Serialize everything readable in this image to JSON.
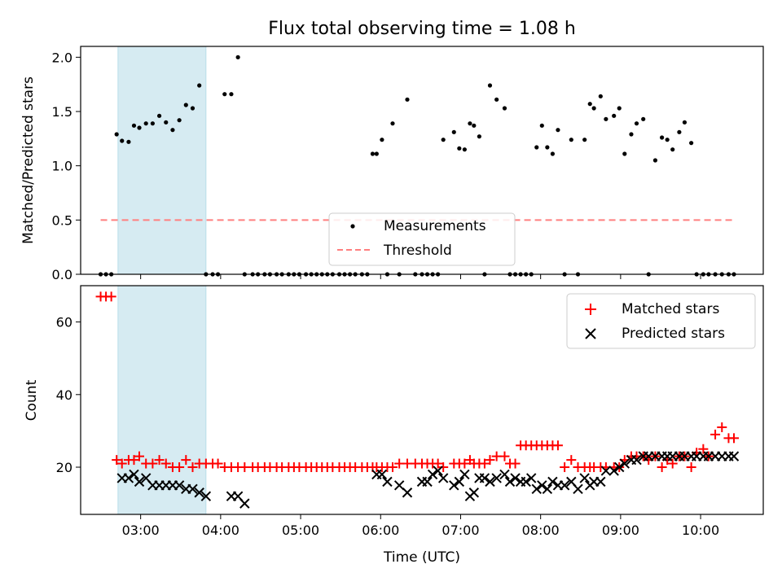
{
  "chart_data": [
    {
      "type": "scatter",
      "title": "Flux total observing time = 1.08 h",
      "xlabel": "",
      "ylabel": "Matched/Predicted stars",
      "xlim": [
        "02:15",
        "10:47"
      ],
      "ylim": [
        0,
        2.1
      ],
      "yticks": [
        "0.0",
        "0.5",
        "1.0",
        "1.5",
        "2.0"
      ],
      "grid": false,
      "legend_position": "bottom-center",
      "shaded_interval": {
        "start": "02:43",
        "end": "03:49",
        "color": "#add8e6"
      },
      "series": [
        {
          "name": "Measurements",
          "kind": "dot",
          "color": "#000000",
          "x": [
            "02:30",
            "02:34",
            "02:38",
            "02:42",
            "02:46",
            "02:51",
            "02:55",
            "02:59",
            "03:04",
            "03:09",
            "03:14",
            "03:19",
            "03:24",
            "03:29",
            "03:34",
            "03:39",
            "03:44",
            "03:49",
            "03:54",
            "03:58",
            "04:03",
            "04:08",
            "04:13",
            "04:18",
            "04:24",
            "04:28",
            "04:33",
            "04:37",
            "04:42",
            "04:46",
            "04:51",
            "04:55",
            "04:59",
            "05:04",
            "05:08",
            "05:12",
            "05:16",
            "05:20",
            "05:24",
            "05:29",
            "05:33",
            "05:37",
            "05:41",
            "05:46",
            "05:50",
            "05:54",
            "05:57",
            "06:01",
            "06:05",
            "06:09",
            "06:14",
            "06:20",
            "06:26",
            "06:31",
            "06:35",
            "06:39",
            "06:43",
            "06:47",
            "06:55",
            "06:59",
            "07:03",
            "07:07",
            "07:10",
            "07:14",
            "07:18",
            "07:22",
            "07:27",
            "07:33",
            "07:37",
            "07:41",
            "07:45",
            "07:49",
            "07:53",
            "07:57",
            "08:01",
            "08:05",
            "08:09",
            "08:13",
            "08:18",
            "08:23",
            "08:28",
            "08:33",
            "08:37",
            "08:40",
            "08:45",
            "08:49",
            "08:55",
            "08:59",
            "09:03",
            "09:08",
            "09:12",
            "09:17",
            "09:21",
            "09:26",
            "09:31",
            "09:35",
            "09:39",
            "09:44",
            "09:48",
            "09:53",
            "09:57",
            "10:02",
            "10:06",
            "10:11",
            "10:16",
            "10:21",
            "10:25"
          ],
          "y": [
            0,
            0,
            0,
            1.29,
            1.23,
            1.22,
            1.37,
            1.35,
            1.39,
            1.39,
            1.46,
            1.4,
            1.33,
            1.42,
            1.56,
            1.53,
            1.74,
            0,
            0,
            0,
            1.66,
            1.66,
            2.0,
            0,
            0,
            0,
            0,
            0,
            0,
            0,
            0,
            0,
            0,
            0,
            0,
            0,
            0,
            0,
            0,
            0,
            0,
            0,
            0,
            0,
            0,
            1.11,
            1.11,
            1.24,
            0,
            1.39,
            0,
            1.61,
            0,
            0,
            0,
            0,
            0,
            1.24,
            1.31,
            1.16,
            1.15,
            1.39,
            1.37,
            1.27,
            0,
            1.74,
            1.61,
            1.53,
            0,
            0,
            0,
            0,
            0,
            1.17,
            1.37,
            1.17,
            1.11,
            1.33,
            0,
            1.24,
            0,
            1.24,
            1.57,
            1.53,
            1.64,
            1.43,
            1.46,
            1.53,
            1.11,
            1.29,
            1.39,
            1.43,
            0,
            1.05,
            1.26,
            1.24,
            1.15,
            1.31,
            1.4,
            1.21,
            0,
            0,
            0,
            0,
            0,
            0,
            0
          ]
        },
        {
          "name": "Threshold",
          "kind": "dashed-line",
          "color": "#ff7f7f",
          "x": [
            "02:30",
            "10:25"
          ],
          "y": [
            0.5,
            0.5
          ]
        }
      ]
    },
    {
      "type": "scatter",
      "title": "",
      "xlabel": "Time (UTC)",
      "ylabel": "Count",
      "xlim": [
        "02:15",
        "10:47"
      ],
      "ylim": [
        7,
        70
      ],
      "yticks": [
        "20",
        "40",
        "60"
      ],
      "xticks": [
        "03:00",
        "04:00",
        "05:00",
        "06:00",
        "07:00",
        "08:00",
        "09:00",
        "10:00"
      ],
      "grid": false,
      "legend_position": "top-right",
      "shaded_interval": {
        "start": "02:43",
        "end": "03:49",
        "color": "#add8e6"
      },
      "series": [
        {
          "name": "Matched stars",
          "kind": "plus",
          "color": "#ff0000",
          "x": [
            "02:30",
            "02:34",
            "02:38",
            "02:42",
            "02:46",
            "02:51",
            "02:55",
            "02:59",
            "03:04",
            "03:09",
            "03:14",
            "03:19",
            "03:24",
            "03:29",
            "03:34",
            "03:39",
            "03:44",
            "03:49",
            "03:54",
            "03:58",
            "04:03",
            "04:08",
            "04:13",
            "04:18",
            "04:24",
            "04:28",
            "04:33",
            "04:37",
            "04:42",
            "04:46",
            "04:51",
            "04:55",
            "04:59",
            "05:04",
            "05:08",
            "05:12",
            "05:16",
            "05:20",
            "05:24",
            "05:29",
            "05:33",
            "05:37",
            "05:41",
            "05:46",
            "05:50",
            "05:54",
            "05:57",
            "06:01",
            "06:05",
            "06:09",
            "06:14",
            "06:20",
            "06:26",
            "06:31",
            "06:35",
            "06:39",
            "06:43",
            "06:47",
            "06:55",
            "06:59",
            "07:03",
            "07:07",
            "07:10",
            "07:14",
            "07:18",
            "07:22",
            "07:27",
            "07:33",
            "07:37",
            "07:41",
            "07:45",
            "07:49",
            "07:53",
            "07:57",
            "08:01",
            "08:05",
            "08:09",
            "08:13",
            "08:18",
            "08:23",
            "08:28",
            "08:33",
            "08:37",
            "08:40",
            "08:45",
            "08:49",
            "08:55",
            "08:59",
            "09:03",
            "09:08",
            "09:12",
            "09:17",
            "09:21",
            "09:26",
            "09:31",
            "09:35",
            "09:39",
            "09:44",
            "09:48",
            "09:53",
            "09:57",
            "10:02",
            "10:06",
            "10:11",
            "10:16",
            "10:21",
            "10:25"
          ],
          "y": [
            67,
            67,
            67,
            22,
            21,
            22,
            22,
            23,
            21,
            21,
            22,
            21,
            20,
            20,
            22,
            20,
            21,
            21,
            21,
            21,
            20,
            20,
            20,
            20,
            20,
            20,
            20,
            20,
            20,
            20,
            20,
            20,
            20,
            20,
            20,
            20,
            20,
            20,
            20,
            20,
            20,
            20,
            20,
            20,
            20,
            20,
            20,
            20,
            20,
            20,
            21,
            21,
            21,
            21,
            21,
            21,
            21,
            20,
            21,
            21,
            21,
            22,
            21,
            21,
            21,
            22,
            23,
            23,
            21,
            21,
            26,
            26,
            26,
            26,
            26,
            26,
            26,
            26,
            20,
            22,
            20,
            20,
            20,
            20,
            20,
            20,
            20,
            20,
            22,
            23,
            23,
            23,
            22,
            23,
            20,
            22,
            21,
            23,
            23,
            20,
            24,
            25,
            23,
            29,
            31,
            28,
            28
          ]
        },
        {
          "name": "Predicted stars",
          "kind": "x",
          "color": "#000000",
          "x": [
            "02:46",
            "02:51",
            "02:55",
            "02:59",
            "03:04",
            "03:09",
            "03:14",
            "03:19",
            "03:24",
            "03:29",
            "03:34",
            "03:39",
            "03:44",
            "03:49",
            "04:08",
            "04:13",
            "04:18",
            "05:57",
            "06:01",
            "06:05",
            "06:14",
            "06:20",
            "06:31",
            "06:35",
            "06:39",
            "06:43",
            "06:47",
            "06:55",
            "06:59",
            "07:03",
            "07:07",
            "07:10",
            "07:14",
            "07:18",
            "07:22",
            "07:27",
            "07:33",
            "07:37",
            "07:41",
            "07:45",
            "07:49",
            "07:53",
            "07:57",
            "08:01",
            "08:05",
            "08:09",
            "08:13",
            "08:18",
            "08:23",
            "08:28",
            "08:33",
            "08:37",
            "08:40",
            "08:45",
            "08:49",
            "08:55",
            "08:59",
            "09:03",
            "09:08",
            "09:12",
            "09:17",
            "09:21",
            "09:26",
            "09:31",
            "09:35",
            "09:39",
            "09:44",
            "09:48",
            "09:53",
            "09:57",
            "10:02",
            "10:06",
            "10:11",
            "10:16",
            "10:21",
            "10:25"
          ],
          "y": [
            17,
            17,
            18,
            16,
            17,
            15,
            15,
            15,
            15,
            15,
            14,
            14,
            13,
            12,
            12,
            12,
            10,
            18,
            18,
            16,
            15,
            13,
            16,
            16,
            18,
            19,
            17,
            15,
            16,
            18,
            12,
            13,
            17,
            17,
            16,
            17,
            18,
            16,
            17,
            16,
            16,
            17,
            14,
            15,
            14,
            16,
            15,
            15,
            16,
            14,
            17,
            15,
            16,
            16,
            19,
            19,
            20,
            21,
            22,
            22,
            23,
            23,
            23,
            23,
            23,
            23,
            23,
            23,
            23,
            23,
            23,
            23,
            23,
            23,
            23,
            23
          ]
        }
      ]
    }
  ]
}
